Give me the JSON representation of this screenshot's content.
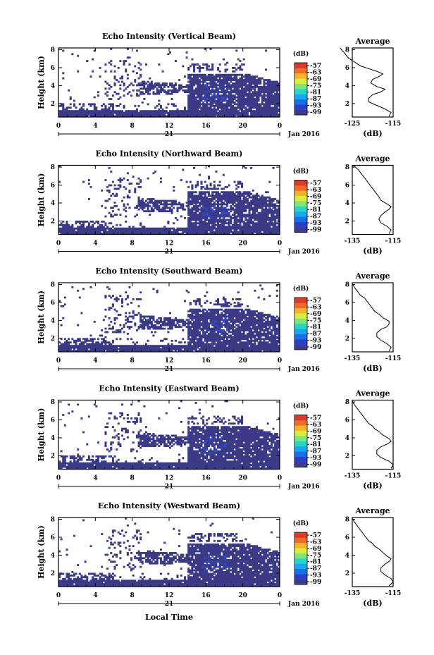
{
  "figure": {
    "x_axis_label": "Local Time",
    "date_label": "21",
    "month_label": "Jan 2016",
    "colorbar_unit": "(dB)",
    "colorbar_ticks": [
      "-57",
      "-63",
      "-69",
      "-75",
      "-81",
      "-87",
      "-93",
      "-99"
    ],
    "colorbar_colors": [
      "#3b3b8f",
      "#2a3fc8",
      "#1a6ee8",
      "#16a8f0",
      "#28d6c8",
      "#7ee67a",
      "#d8ee3a",
      "#f5b52a",
      "#f06a2a",
      "#d93b2b"
    ],
    "heatmap_fill": "#3a3a87",
    "heatmap_highlight": "#2f49c9"
  },
  "chart_data": [
    {
      "type": "heatmap",
      "title": "Echo Intensity (Vertical Beam)",
      "ylabel": "Height (km)",
      "x_ticks": [
        "0",
        "4",
        "8",
        "12",
        "16",
        "20",
        "0"
      ],
      "y_ticks": [
        "2",
        "4",
        "6",
        "8"
      ],
      "xlim": [
        0,
        24
      ],
      "ylim": [
        0.5,
        8.2
      ],
      "profile": {
        "title": "Average",
        "xlabel": "(dB)",
        "x_ticks": [
          "-125",
          "-115"
        ],
        "y_ticks": [
          "2",
          "4",
          "6",
          "8"
        ],
        "x": [
          -116,
          -115.5,
          -117,
          -119,
          -121,
          -121,
          -120,
          -118,
          -117,
          -119,
          -120.5,
          -120,
          -118.5,
          -117.5,
          -119,
          -121,
          -123,
          -124,
          -125,
          -126,
          -126.5,
          -127,
          -127.5,
          -127.8,
          -128
        ],
        "y": [
          0.6,
          1.0,
          1.4,
          1.8,
          2.2,
          2.6,
          3.0,
          3.3,
          3.6,
          3.9,
          4.3,
          4.7,
          5.0,
          5.3,
          5.6,
          5.9,
          6.2,
          6.5,
          6.8,
          7.1,
          7.4,
          7.7,
          7.9,
          8.1,
          8.2
        ]
      }
    },
    {
      "type": "heatmap",
      "title": "Echo Intensity (Northward Beam)",
      "ylabel": "Height (km)",
      "x_ticks": [
        "0",
        "4",
        "8",
        "12",
        "16",
        "20",
        "0"
      ],
      "y_ticks": [
        "2",
        "4",
        "6",
        "8"
      ],
      "xlim": [
        0,
        24
      ],
      "ylim": [
        0.5,
        8.2
      ],
      "profile": {
        "title": "Average",
        "xlabel": "(dB)",
        "x_ticks": [
          "-135",
          "-115"
        ],
        "y_ticks": [
          "2",
          "4",
          "6",
          "8"
        ],
        "x": [
          -117,
          -116,
          -118,
          -121,
          -122,
          -121,
          -119,
          -117,
          -116,
          -118,
          -121,
          -122,
          -123,
          -124,
          -125,
          -126,
          -127,
          -128,
          -129,
          -130,
          -131,
          -132,
          -133,
          -134,
          -135
        ],
        "y": [
          0.6,
          1.0,
          1.4,
          1.8,
          2.2,
          2.6,
          3.0,
          3.3,
          3.6,
          3.9,
          4.3,
          4.7,
          5.0,
          5.3,
          5.6,
          5.9,
          6.2,
          6.5,
          6.8,
          7.1,
          7.4,
          7.7,
          7.9,
          8.1,
          8.2
        ]
      }
    },
    {
      "type": "heatmap",
      "title": "Echo Intensity (Southward Beam)",
      "ylabel": "Height (km)",
      "x_ticks": [
        "0",
        "4",
        "8",
        "12",
        "16",
        "20",
        "0"
      ],
      "y_ticks": [
        "2",
        "4",
        "6",
        "8"
      ],
      "xlim": [
        0,
        24
      ],
      "ylim": [
        0.5,
        8.2
      ],
      "profile": {
        "title": "Average",
        "xlabel": "(dB)",
        "x_ticks": [
          "-135",
          "-115"
        ],
        "y_ticks": [
          "2",
          "4",
          "6",
          "8"
        ],
        "x": [
          -117,
          -116,
          -118,
          -121,
          -123,
          -123,
          -121,
          -118,
          -117,
          -117,
          -120,
          -122,
          -124,
          -125,
          -126,
          -127,
          -128,
          -129,
          -131,
          -132,
          -133,
          -134,
          -134.5,
          -135,
          -135
        ],
        "y": [
          0.6,
          1.0,
          1.4,
          1.8,
          2.2,
          2.6,
          3.0,
          3.3,
          3.6,
          3.9,
          4.3,
          4.7,
          5.0,
          5.3,
          5.6,
          5.9,
          6.2,
          6.5,
          6.8,
          7.1,
          7.4,
          7.7,
          7.9,
          8.1,
          8.2
        ]
      }
    },
    {
      "type": "heatmap",
      "title": "Echo Intensity (Eastward Beam)",
      "ylabel": "Height (km)",
      "x_ticks": [
        "0",
        "4",
        "8",
        "12",
        "16",
        "20",
        "0"
      ],
      "y_ticks": [
        "2",
        "4",
        "6",
        "8"
      ],
      "xlim": [
        0,
        24
      ],
      "ylim": [
        0.5,
        8.2
      ],
      "profile": {
        "title": "Average",
        "xlabel": "(dB)",
        "x_ticks": [
          "-135",
          "-115"
        ],
        "y_ticks": [
          "2",
          "4",
          "6",
          "8"
        ],
        "x": [
          -116,
          -115,
          -117,
          -121,
          -123,
          -123,
          -121,
          -118,
          -116,
          -117,
          -120,
          -122,
          -124,
          -125,
          -127,
          -128,
          -129,
          -130,
          -131,
          -132,
          -133,
          -134,
          -134.5,
          -135,
          -135
        ],
        "y": [
          0.6,
          1.0,
          1.4,
          1.8,
          2.2,
          2.6,
          3.0,
          3.3,
          3.6,
          3.9,
          4.3,
          4.7,
          5.0,
          5.3,
          5.6,
          5.9,
          6.2,
          6.5,
          6.8,
          7.1,
          7.4,
          7.7,
          7.9,
          8.1,
          8.2
        ]
      }
    },
    {
      "type": "heatmap",
      "title": "Echo Intensity (Westward Beam)",
      "ylabel": "Height (km)",
      "x_ticks": [
        "0",
        "4",
        "8",
        "12",
        "16",
        "20",
        "0"
      ],
      "y_ticks": [
        "2",
        "4",
        "6",
        "8"
      ],
      "xlim": [
        0,
        24
      ],
      "ylim": [
        0.5,
        8.2
      ],
      "profile": {
        "title": "Average",
        "xlabel": "(dB)",
        "x_ticks": [
          "-135",
          "-115"
        ],
        "y_ticks": [
          "2",
          "4",
          "6",
          "8"
        ],
        "x": [
          -117,
          -115,
          -116,
          -119,
          -121,
          -121,
          -119,
          -117,
          -116,
          -118,
          -120,
          -122,
          -124,
          -125,
          -127,
          -128,
          -129,
          -130,
          -131,
          -132,
          -133,
          -134,
          -134.5,
          -135,
          -135
        ],
        "y": [
          0.6,
          1.0,
          1.4,
          1.8,
          2.2,
          2.6,
          3.0,
          3.3,
          3.6,
          3.9,
          4.3,
          4.7,
          5.0,
          5.3,
          5.6,
          5.9,
          6.2,
          6.5,
          6.8,
          7.1,
          7.4,
          7.7,
          7.9,
          8.1,
          8.2
        ]
      }
    }
  ]
}
